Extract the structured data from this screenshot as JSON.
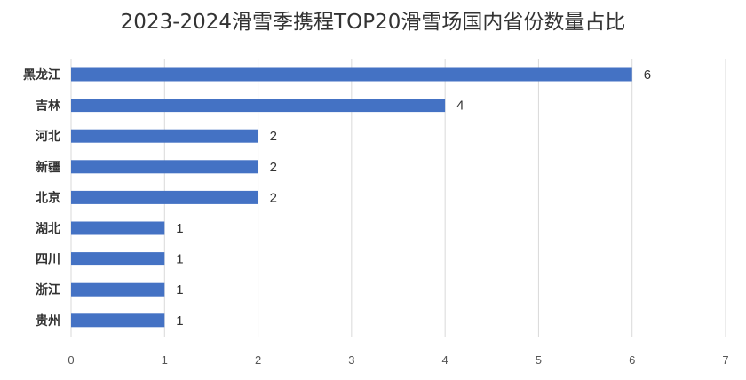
{
  "chart_data": {
    "type": "bar",
    "orientation": "horizontal",
    "title": "2023-2024滑雪季携程TOP20滑雪场国内省份数量占比",
    "categories": [
      "黑龙江",
      "吉林",
      "河北",
      "新疆",
      "北京",
      "湖北",
      "四川",
      "浙江",
      "贵州"
    ],
    "values": [
      6,
      4,
      2,
      2,
      2,
      1,
      1,
      1,
      1
    ],
    "xlim": [
      0,
      7
    ],
    "xticks": [
      0,
      1,
      2,
      3,
      4,
      5,
      6,
      7
    ],
    "grid": true,
    "data_labels": true,
    "bar_color": "#4472c4",
    "xlabel": "",
    "ylabel": ""
  }
}
